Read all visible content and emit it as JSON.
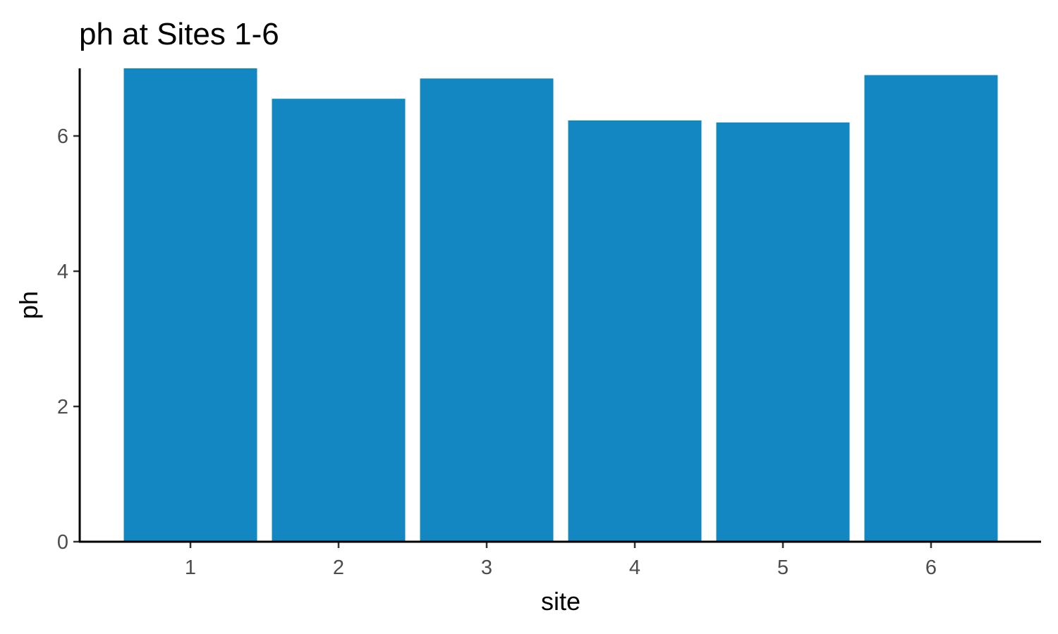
{
  "chart_data": {
    "type": "bar",
    "title": "ph at Sites 1-6",
    "xlabel": "site",
    "ylabel": "ph",
    "categories": [
      "1",
      "2",
      "3",
      "4",
      "5",
      "6"
    ],
    "values": [
      7.0,
      6.55,
      6.85,
      6.23,
      6.2,
      6.9
    ],
    "ylim": [
      0,
      7.0
    ],
    "yticks": [
      "0",
      "2",
      "4",
      "6"
    ],
    "grid": false,
    "legend": "none",
    "colors": {
      "bar": "#1287c1",
      "axis": "#000000",
      "tick_label": "#4d4d4d"
    }
  }
}
